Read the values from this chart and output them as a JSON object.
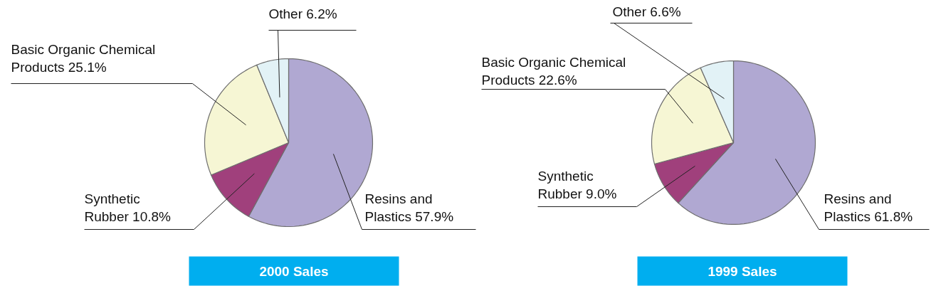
{
  "chart_data": [
    {
      "type": "pie",
      "title": "2000 Sales",
      "categories": [
        "Resins and Plastics",
        "Synthetic Rubber",
        "Basic Organic Chemical Products",
        "Other"
      ],
      "values": [
        57.9,
        10.8,
        25.1,
        6.2
      ],
      "value_labels": [
        "57.9%",
        "10.8%",
        "25.1%",
        "6.2%"
      ],
      "colors": [
        "#b0a8d2",
        "#a0407c",
        "#f6f6d4",
        "#e2f2f6"
      ]
    },
    {
      "type": "pie",
      "title": "1999 Sales",
      "categories": [
        "Resins and Plastics",
        "Synthetic Rubber",
        "Basic Organic Chemical Products",
        "Other"
      ],
      "values": [
        61.8,
        9.0,
        22.6,
        6.6
      ],
      "value_labels": [
        "61.8%",
        "9.0%",
        "22.6%",
        "6.6%"
      ],
      "colors": [
        "#b0a8d2",
        "#a0407c",
        "#f6f6d4",
        "#e2f2f6"
      ]
    }
  ]
}
